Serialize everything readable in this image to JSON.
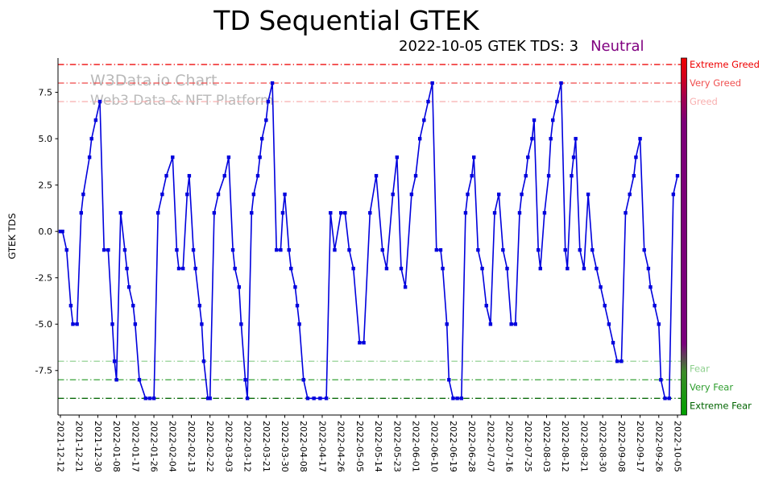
{
  "watermark": {
    "line1": "W3Data.io Chart",
    "line2": "Web3 Data & NFT Platform"
  },
  "chart_data": {
    "type": "line",
    "title": "TD Sequential GTEK",
    "subtitle": "2022-10-05 GTEK TDS: 3",
    "subtitle_status": "Neutral",
    "xlabel": "",
    "ylabel": "GTEK TDS",
    "ylim": [
      -9.9,
      9.35
    ],
    "x_start": "2021-12-12",
    "x_end": "2022-10-05",
    "colors": {
      "line": "#0000dd",
      "status_neutral": "#800080",
      "watermark": "#b9b9b9",
      "axis": "#000000"
    },
    "marker": "square",
    "y_ticks": [
      {
        "label": "7.5",
        "value": 7.5
      },
      {
        "label": "5.0",
        "value": 5.0
      },
      {
        "label": "2.5",
        "value": 2.5
      },
      {
        "label": "0.0",
        "value": 0.0
      },
      {
        "label": "-2.5",
        "value": -2.5
      },
      {
        "label": "-5.0",
        "value": -5.0
      },
      {
        "label": "-7.5",
        "value": -7.5
      }
    ],
    "x_tick_labels": [
      "2021-12-12",
      "2021-12-21",
      "2021-12-30",
      "2022-01-08",
      "2022-01-17",
      "2022-01-26",
      "2022-02-04",
      "2022-02-13",
      "2022-02-22",
      "2022-03-03",
      "2022-03-12",
      "2022-03-21",
      "2022-03-30",
      "2022-04-08",
      "2022-04-17",
      "2022-04-26",
      "2022-05-05",
      "2022-05-14",
      "2022-05-23",
      "2022-06-01",
      "2022-06-10",
      "2022-06-19",
      "2022-06-28",
      "2022-07-07",
      "2022-07-16",
      "2022-07-25",
      "2022-08-03",
      "2022-08-12",
      "2022-08-21",
      "2022-08-30",
      "2022-09-08",
      "2022-09-17",
      "2022-09-26",
      "2022-10-05"
    ],
    "reference_lines": [
      {
        "y": 9,
        "label": "Extreme Greed",
        "color": "#ee0000"
      },
      {
        "y": 8,
        "label": "Very Greed",
        "color": "#f05050"
      },
      {
        "y": 7,
        "label": "Greed",
        "color": "#f8b0b0"
      },
      {
        "y": -7,
        "label": "Fear",
        "color": "#8fd08f"
      },
      {
        "y": -8,
        "label": "Very Fear",
        "color": "#2f9e2f"
      },
      {
        "y": -9,
        "label": "Extreme Fear",
        "color": "#006400"
      }
    ],
    "colorbar_stops": [
      {
        "offset": "0%",
        "color": "#f00000"
      },
      {
        "offset": "5%",
        "color": "#d40018"
      },
      {
        "offset": "11%",
        "color": "#a2004e"
      },
      {
        "offset": "18%",
        "color": "#7c0078"
      },
      {
        "offset": "80%",
        "color": "#7a007c"
      },
      {
        "offset": "88%",
        "color": "#3c8b28"
      },
      {
        "offset": "100%",
        "color": "#00a000"
      }
    ],
    "points": [
      [
        "2021-12-12",
        0
      ],
      [
        "2021-12-13",
        0
      ],
      [
        "2021-12-15",
        -1
      ],
      [
        "2021-12-17",
        -4
      ],
      [
        "2021-12-18",
        -5
      ],
      [
        "2021-12-20",
        -5
      ],
      [
        "2021-12-22",
        1
      ],
      [
        "2021-12-23",
        2
      ],
      [
        "2021-12-26",
        4
      ],
      [
        "2021-12-27",
        5
      ],
      [
        "2021-12-29",
        6
      ],
      [
        "2021-12-31",
        7
      ],
      [
        "2022-01-02",
        -1
      ],
      [
        "2022-01-04",
        -1
      ],
      [
        "2022-01-06",
        -5
      ],
      [
        "2022-01-07",
        -7
      ],
      [
        "2022-01-08",
        -8
      ],
      [
        "2022-01-10",
        1
      ],
      [
        "2022-01-12",
        -1
      ],
      [
        "2022-01-13",
        -2
      ],
      [
        "2022-01-14",
        -3
      ],
      [
        "2022-01-16",
        -4
      ],
      [
        "2022-01-17",
        -5
      ],
      [
        "2022-01-19",
        -8
      ],
      [
        "2022-01-22",
        -9
      ],
      [
        "2022-01-24",
        -9
      ],
      [
        "2022-01-26",
        -9
      ],
      [
        "2022-01-28",
        1
      ],
      [
        "2022-01-30",
        2
      ],
      [
        "2022-02-01",
        3
      ],
      [
        "2022-02-04",
        4
      ],
      [
        "2022-02-06",
        -1
      ],
      [
        "2022-02-07",
        -2
      ],
      [
        "2022-02-09",
        -2
      ],
      [
        "2022-02-11",
        2
      ],
      [
        "2022-02-12",
        3
      ],
      [
        "2022-02-14",
        -1
      ],
      [
        "2022-02-15",
        -2
      ],
      [
        "2022-02-17",
        -4
      ],
      [
        "2022-02-18",
        -5
      ],
      [
        "2022-02-19",
        -7
      ],
      [
        "2022-02-21",
        -9
      ],
      [
        "2022-02-22",
        -9
      ],
      [
        "2022-02-24",
        1
      ],
      [
        "2022-02-26",
        2
      ],
      [
        "2022-03-01",
        3
      ],
      [
        "2022-03-03",
        4
      ],
      [
        "2022-03-05",
        -1
      ],
      [
        "2022-03-06",
        -2
      ],
      [
        "2022-03-08",
        -3
      ],
      [
        "2022-03-09",
        -5
      ],
      [
        "2022-03-11",
        -8
      ],
      [
        "2022-03-12",
        -9
      ],
      [
        "2022-03-14",
        1
      ],
      [
        "2022-03-15",
        2
      ],
      [
        "2022-03-17",
        3
      ],
      [
        "2022-03-18",
        4
      ],
      [
        "2022-03-19",
        5
      ],
      [
        "2022-03-21",
        6
      ],
      [
        "2022-03-22",
        7
      ],
      [
        "2022-03-24",
        8
      ],
      [
        "2022-03-26",
        -1
      ],
      [
        "2022-03-28",
        -1
      ],
      [
        "2022-03-29",
        1
      ],
      [
        "2022-03-30",
        2
      ],
      [
        "2022-04-01",
        -1
      ],
      [
        "2022-04-02",
        -2
      ],
      [
        "2022-04-04",
        -3
      ],
      [
        "2022-04-05",
        -4
      ],
      [
        "2022-04-06",
        -5
      ],
      [
        "2022-04-08",
        -8
      ],
      [
        "2022-04-10",
        -9
      ],
      [
        "2022-04-13",
        -9
      ],
      [
        "2022-04-16",
        -9
      ],
      [
        "2022-04-19",
        -9
      ],
      [
        "2022-04-21",
        1
      ],
      [
        "2022-04-23",
        -1
      ],
      [
        "2022-04-26",
        1
      ],
      [
        "2022-04-28",
        1
      ],
      [
        "2022-04-30",
        -1
      ],
      [
        "2022-05-02",
        -2
      ],
      [
        "2022-05-05",
        -6
      ],
      [
        "2022-05-07",
        -6
      ],
      [
        "2022-05-10",
        1
      ],
      [
        "2022-05-13",
        3
      ],
      [
        "2022-05-16",
        -1
      ],
      [
        "2022-05-18",
        -2
      ],
      [
        "2022-05-21",
        2
      ],
      [
        "2022-05-23",
        4
      ],
      [
        "2022-05-25",
        -2
      ],
      [
        "2022-05-27",
        -3
      ],
      [
        "2022-05-30",
        2
      ],
      [
        "2022-06-01",
        3
      ],
      [
        "2022-06-03",
        5
      ],
      [
        "2022-06-05",
        6
      ],
      [
        "2022-06-07",
        7
      ],
      [
        "2022-06-09",
        8
      ],
      [
        "2022-06-11",
        -1
      ],
      [
        "2022-06-13",
        -1
      ],
      [
        "2022-06-14",
        -2
      ],
      [
        "2022-06-16",
        -5
      ],
      [
        "2022-06-17",
        -8
      ],
      [
        "2022-06-19",
        -9
      ],
      [
        "2022-06-21",
        -9
      ],
      [
        "2022-06-23",
        -9
      ],
      [
        "2022-06-25",
        1
      ],
      [
        "2022-06-26",
        2
      ],
      [
        "2022-06-28",
        3
      ],
      [
        "2022-06-29",
        4
      ],
      [
        "2022-07-01",
        -1
      ],
      [
        "2022-07-03",
        -2
      ],
      [
        "2022-07-05",
        -4
      ],
      [
        "2022-07-07",
        -5
      ],
      [
        "2022-07-09",
        1
      ],
      [
        "2022-07-11",
        2
      ],
      [
        "2022-07-13",
        -1
      ],
      [
        "2022-07-15",
        -2
      ],
      [
        "2022-07-17",
        -5
      ],
      [
        "2022-07-19",
        -5
      ],
      [
        "2022-07-21",
        1
      ],
      [
        "2022-07-22",
        2
      ],
      [
        "2022-07-24",
        3
      ],
      [
        "2022-07-25",
        4
      ],
      [
        "2022-07-27",
        5
      ],
      [
        "2022-07-28",
        6
      ],
      [
        "2022-07-30",
        -1
      ],
      [
        "2022-07-31",
        -2
      ],
      [
        "2022-08-02",
        1
      ],
      [
        "2022-08-04",
        3
      ],
      [
        "2022-08-05",
        5
      ],
      [
        "2022-08-06",
        6
      ],
      [
        "2022-08-08",
        7
      ],
      [
        "2022-08-10",
        8
      ],
      [
        "2022-08-12",
        -1
      ],
      [
        "2022-08-13",
        -2
      ],
      [
        "2022-08-15",
        3
      ],
      [
        "2022-08-16",
        4
      ],
      [
        "2022-08-17",
        5
      ],
      [
        "2022-08-19",
        -1
      ],
      [
        "2022-08-21",
        -2
      ],
      [
        "2022-08-23",
        2
      ],
      [
        "2022-08-25",
        -1
      ],
      [
        "2022-08-27",
        -2
      ],
      [
        "2022-08-29",
        -3
      ],
      [
        "2022-08-31",
        -4
      ],
      [
        "2022-09-02",
        -5
      ],
      [
        "2022-09-04",
        -6
      ],
      [
        "2022-09-06",
        -7
      ],
      [
        "2022-09-08",
        -7
      ],
      [
        "2022-09-10",
        1
      ],
      [
        "2022-09-12",
        2
      ],
      [
        "2022-09-14",
        3
      ],
      [
        "2022-09-15",
        4
      ],
      [
        "2022-09-17",
        5
      ],
      [
        "2022-09-19",
        -1
      ],
      [
        "2022-09-21",
        -2
      ],
      [
        "2022-09-22",
        -3
      ],
      [
        "2022-09-24",
        -4
      ],
      [
        "2022-09-26",
        -5
      ],
      [
        "2022-09-27",
        -8
      ],
      [
        "2022-09-29",
        -9
      ],
      [
        "2022-10-01",
        -9
      ],
      [
        "2022-10-03",
        2
      ],
      [
        "2022-10-05",
        3
      ]
    ]
  }
}
